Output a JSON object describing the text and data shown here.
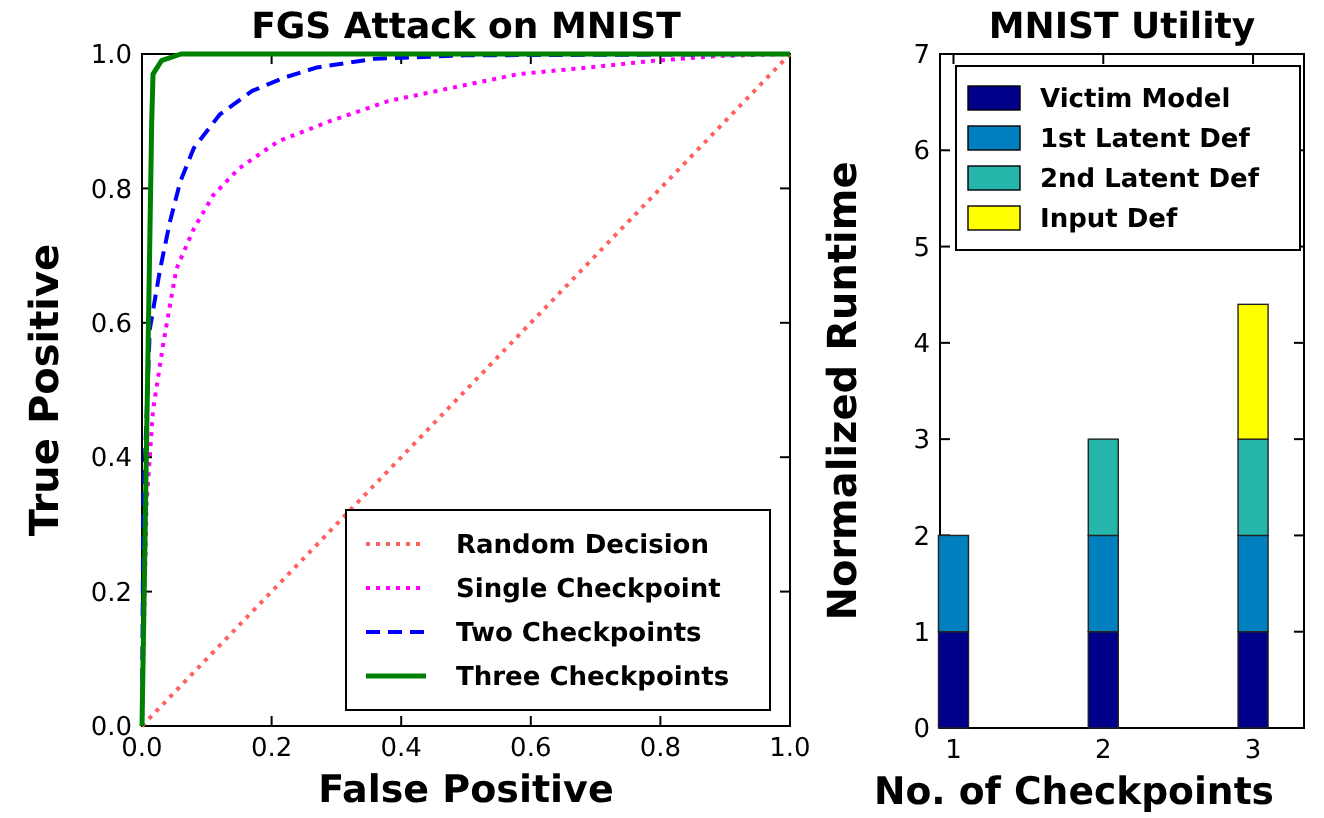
{
  "chart_data": [
    {
      "type": "line",
      "title": "FGS Attack on MNIST",
      "xlabel": "False Positive",
      "ylabel": "True Positive",
      "xlim": [
        0,
        1
      ],
      "ylim": [
        0,
        1
      ],
      "xticks": [
        {
          "value": 0,
          "label": "0.0"
        },
        0.2,
        0.4,
        0.6,
        0.8,
        {
          "value": 1,
          "label": "1.0"
        }
      ],
      "yticks": [
        {
          "value": 0,
          "label": "0.0"
        },
        0.2,
        0.4,
        0.6,
        0.8,
        {
          "value": 1,
          "label": "1.0"
        }
      ],
      "grid": false,
      "legend": "bottom right",
      "series": [
        {
          "name": "Random Decision",
          "color": "#ff6060",
          "line_style": "dotted",
          "x": [
            0,
            1
          ],
          "values": [
            0,
            1
          ]
        },
        {
          "name": "Single Checkpoint",
          "color": "#ff00ff",
          "line_style": "dotted",
          "x": [
            0,
            0.007,
            0.017,
            0.033,
            0.053,
            0.08,
            0.11,
            0.15,
            0.21,
            0.29,
            0.38,
            0.48,
            0.58,
            0.69,
            0.79,
            0.89,
            1
          ],
          "values": [
            0,
            0.33,
            0.47,
            0.57,
            0.68,
            0.74,
            0.79,
            0.83,
            0.87,
            0.9,
            0.93,
            0.95,
            0.97,
            0.98,
            0.99,
            0.997,
            1
          ]
        },
        {
          "name": "Two Checkpoints",
          "color": "#0000ff",
          "line_style": "dashed",
          "x": [
            0,
            0.002,
            0.012,
            0.028,
            0.043,
            0.059,
            0.08,
            0.12,
            0.17,
            0.22,
            0.27,
            0.36,
            0.5,
            1
          ],
          "values": [
            0,
            0.33,
            0.59,
            0.68,
            0.75,
            0.81,
            0.86,
            0.91,
            0.945,
            0.965,
            0.98,
            0.993,
            0.998,
            1
          ]
        },
        {
          "name": "Three Checkpoints",
          "color": "#008000",
          "line_style": "solid",
          "x": [
            0,
            0.005,
            0.01,
            0.015,
            0.017,
            0.03,
            0.06,
            1
          ],
          "values": [
            0,
            0.3,
            0.6,
            0.9,
            0.97,
            0.99,
            1,
            1
          ]
        }
      ]
    },
    {
      "type": "bar",
      "title": "MNIST Utility",
      "xlabel": "No. of Checkpoints",
      "ylabel": "Normalized Runtime",
      "categories": [
        "1",
        "2",
        "3"
      ],
      "ylim": [
        0,
        7
      ],
      "yticks": [
        0,
        1,
        2,
        3,
        4,
        5,
        6,
        7
      ],
      "stacked": true,
      "grid": false,
      "legend": "top left",
      "series": [
        {
          "name": "Victim Model",
          "color": "#00008b",
          "values": [
            1,
            1,
            1
          ]
        },
        {
          "name": "1st Latent Def",
          "color": "#0080bf",
          "values": [
            1,
            1,
            1
          ]
        },
        {
          "name": "2nd Latent Def",
          "color": "#26b5aa",
          "values": [
            null,
            1,
            1
          ]
        },
        {
          "name": "Input Def",
          "color": "#ffff00",
          "values": [
            null,
            null,
            1.4
          ]
        }
      ]
    }
  ]
}
